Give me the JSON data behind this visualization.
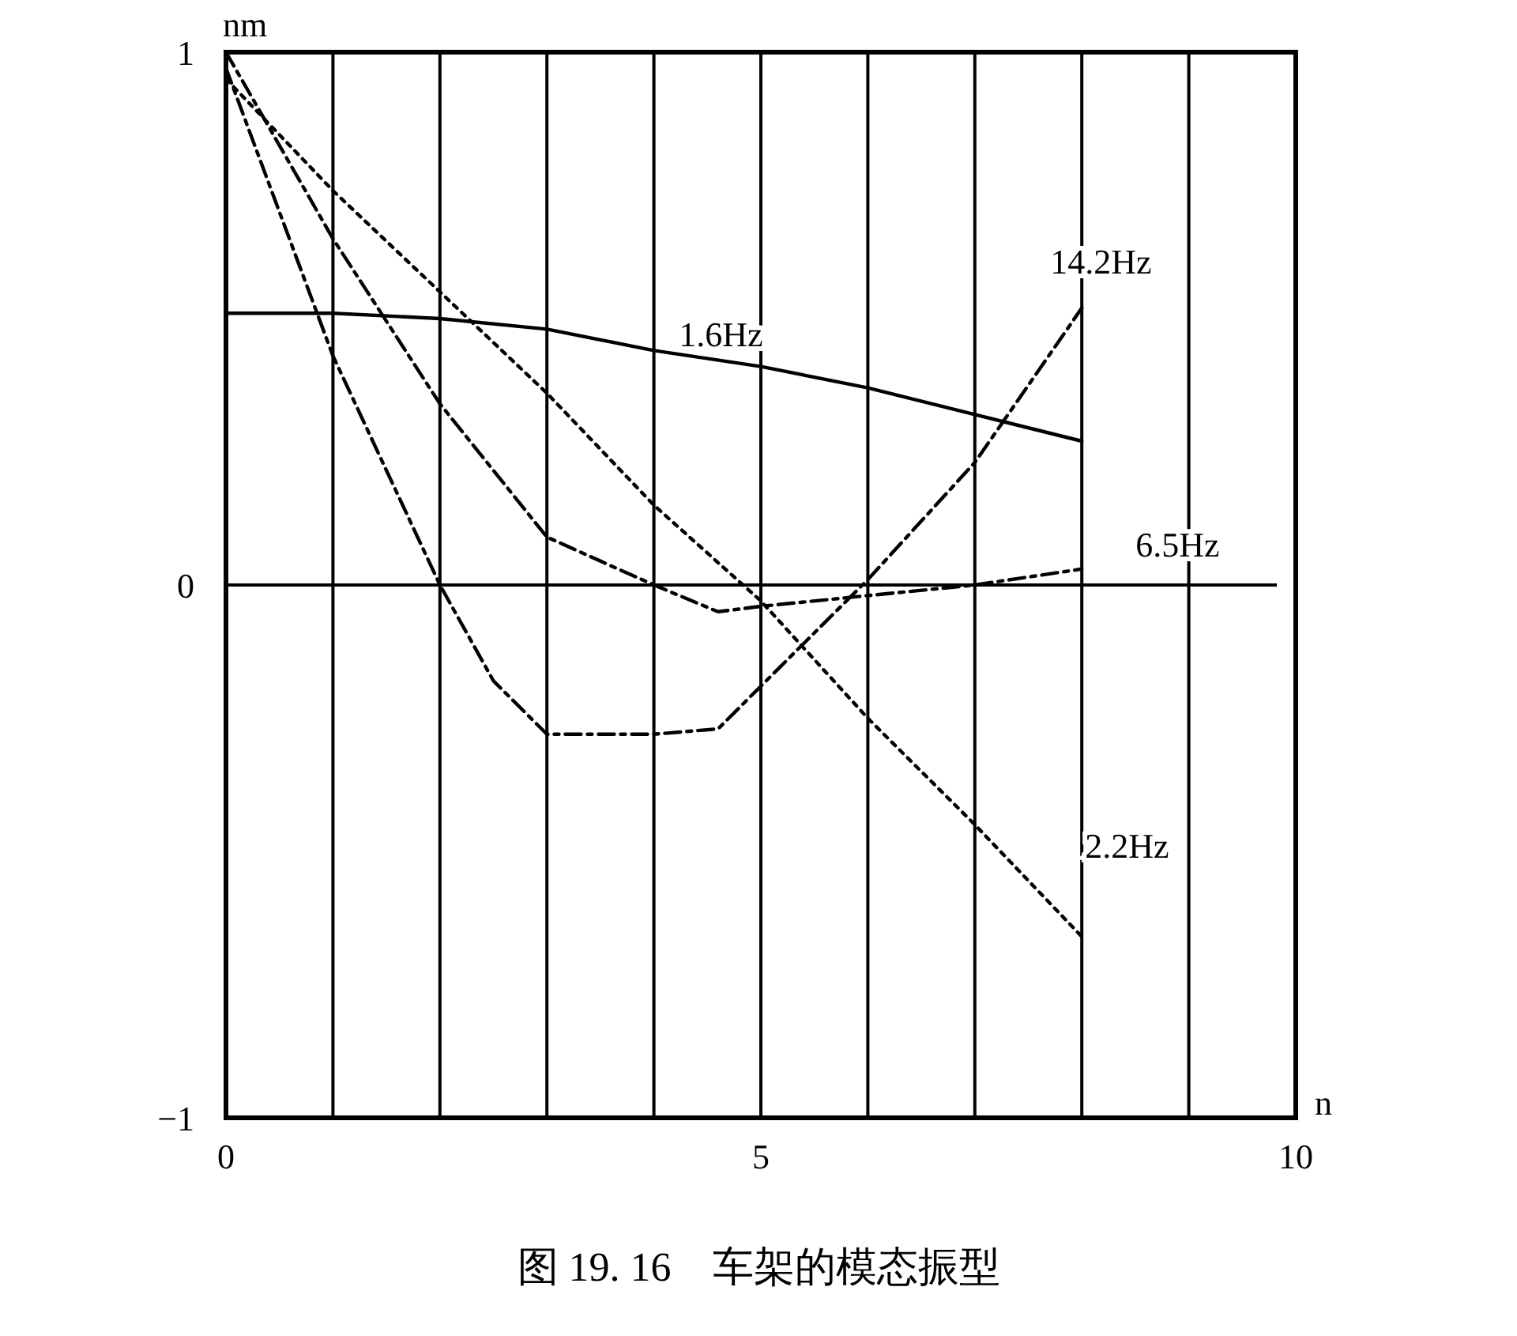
{
  "chart_data": {
    "type": "line",
    "xlabel": "n",
    "ylabel": "nm",
    "xlim": [
      0,
      10
    ],
    "ylim": [
      -1,
      1
    ],
    "xticks": [
      0,
      {
        "value": 1,
        "label": null
      },
      {
        "value": 2,
        "label": null
      },
      {
        "value": 3,
        "label": null
      },
      {
        "value": 4,
        "label": null
      },
      5,
      {
        "value": 6,
        "label": null
      },
      {
        "value": 7,
        "label": null
      },
      {
        "value": 8,
        "label": null
      },
      {
        "value": 9,
        "label": null
      },
      10
    ],
    "yticks": [
      {
        "value": -1,
        "label": "−1"
      },
      0,
      1
    ],
    "grid": "x",
    "ref_lines": [
      {
        "axis": "y",
        "value": 0,
        "label": null
      }
    ],
    "series": [
      {
        "name": "1.6Hz",
        "color": "#000000",
        "line_style": "solid",
        "x": [
          0,
          1,
          2,
          3,
          4,
          5,
          6,
          7,
          8
        ],
        "values": [
          0.51,
          0.51,
          0.5,
          0.48,
          0.44,
          0.41,
          0.37,
          0.32,
          0.27
        ]
      },
      {
        "name": "14.2Hz",
        "color": "#000000",
        "line_style": "dashed",
        "x": [
          0,
          1,
          2,
          2.5,
          3,
          4,
          4.6,
          5,
          6,
          7,
          8
        ],
        "values": [
          0.97,
          0.43,
          0,
          -0.18,
          -0.28,
          -0.28,
          -0.27,
          -0.19,
          0.01,
          0.23,
          0.52
        ]
      },
      {
        "name": "6.5Hz",
        "color": "#000000",
        "line_style": "dashed",
        "x": [
          0,
          1,
          2,
          3,
          4,
          4.6,
          5,
          6,
          7,
          8
        ],
        "values": [
          1,
          0.65,
          0.34,
          0.09,
          0,
          -0.05,
          -0.04,
          -0.02,
          0,
          0.03
        ]
      },
      {
        "name": "2.2Hz",
        "color": "#000000",
        "line_style": "dotted",
        "x": [
          0,
          1,
          2,
          3,
          4,
          5,
          6,
          7,
          8
        ],
        "values": [
          0.95,
          0.74,
          0.55,
          0.36,
          0.15,
          -0.03,
          -0.25,
          -0.45,
          -0.66
        ]
      }
    ],
    "annotations": [
      "图 19. 16　车架的模态振型"
    ]
  }
}
